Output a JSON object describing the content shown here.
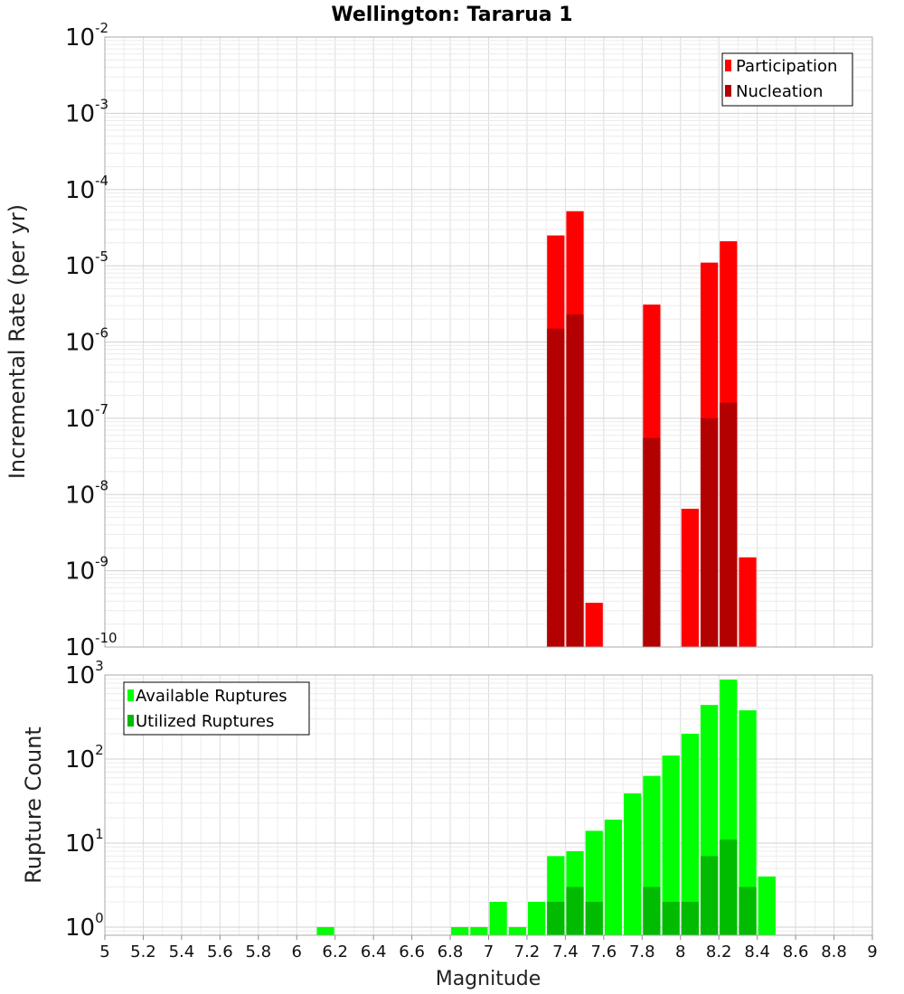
{
  "chart_data": [
    {
      "type": "bar",
      "title": "Wellington: Tararua 1",
      "ylabel": "Incremental Rate (per yr)",
      "xlabel": "",
      "yscale": "log",
      "ylim": [
        1e-10,
        0.01
      ],
      "xlim": [
        5,
        9
      ],
      "bin_width": 0.1,
      "grid": true,
      "legend_position": "top-right",
      "y_ticks": [
        {
          "base": "10",
          "exp": "-10",
          "value": 1e-10
        },
        {
          "base": "10",
          "exp": "-9",
          "value": 1e-09
        },
        {
          "base": "10",
          "exp": "-8",
          "value": 1e-08
        },
        {
          "base": "10",
          "exp": "-7",
          "value": 1e-07
        },
        {
          "base": "10",
          "exp": "-6",
          "value": 1e-06
        },
        {
          "base": "10",
          "exp": "-5",
          "value": 1e-05
        },
        {
          "base": "10",
          "exp": "-4",
          "value": 0.0001
        },
        {
          "base": "10",
          "exp": "-3",
          "value": 0.001
        },
        {
          "base": "10",
          "exp": "-2",
          "value": 0.01
        }
      ],
      "series": [
        {
          "name": "Participation",
          "color": "#ff0000",
          "x": [
            7.35,
            7.45,
            7.55,
            7.85,
            8.05,
            8.15,
            8.25,
            8.35
          ],
          "values": [
            2.5e-05,
            5.2e-05,
            3.8e-10,
            3.1e-06,
            6.5e-09,
            1.1e-05,
            2.1e-05,
            1.5e-09
          ]
        },
        {
          "name": "Nucleation",
          "color": "#b30000",
          "x": [
            7.35,
            7.45,
            7.85,
            8.15,
            8.25
          ],
          "values": [
            1.5e-06,
            2.3e-06,
            5.5e-08,
            1e-07,
            1.6e-07
          ]
        }
      ]
    },
    {
      "type": "bar",
      "title": "",
      "ylabel": "Rupture Count",
      "xlabel": "Magnitude",
      "yscale": "log",
      "ylim": [
        0.8,
        1000
      ],
      "xlim": [
        5,
        9
      ],
      "bin_width": 0.1,
      "grid": true,
      "legend_position": "top-left",
      "y_ticks": [
        {
          "base": "10",
          "exp": "0",
          "value": 1
        },
        {
          "base": "10",
          "exp": "1",
          "value": 10
        },
        {
          "base": "10",
          "exp": "2",
          "value": 100
        },
        {
          "base": "10",
          "exp": "3",
          "value": 1000
        }
      ],
      "x_ticks": [
        "5",
        "5.2",
        "5.4",
        "5.6",
        "5.8",
        "6",
        "6.2",
        "6.4",
        "6.6",
        "6.8",
        "7",
        "7.2",
        "7.4",
        "7.6",
        "7.8",
        "8",
        "8.2",
        "8.4",
        "8.6",
        "8.8",
        "9"
      ],
      "series": [
        {
          "name": "Available Ruptures",
          "color": "#00ff00",
          "x": [
            6.15,
            6.85,
            6.95,
            7.05,
            7.15,
            7.25,
            7.35,
            7.45,
            7.55,
            7.65,
            7.75,
            7.85,
            7.95,
            8.05,
            8.15,
            8.25,
            8.35,
            8.45
          ],
          "values": [
            1,
            1,
            1,
            2,
            1,
            2,
            7,
            8,
            14,
            19,
            39,
            63,
            110,
            200,
            440,
            880,
            380,
            4
          ]
        },
        {
          "name": "Utilized Ruptures",
          "color": "#00bb00",
          "x": [
            7.35,
            7.45,
            7.55,
            7.85,
            7.95,
            8.05,
            8.15,
            8.25,
            8.35
          ],
          "values": [
            2,
            3,
            2,
            3,
            2,
            2,
            7,
            11,
            3
          ]
        }
      ]
    }
  ]
}
